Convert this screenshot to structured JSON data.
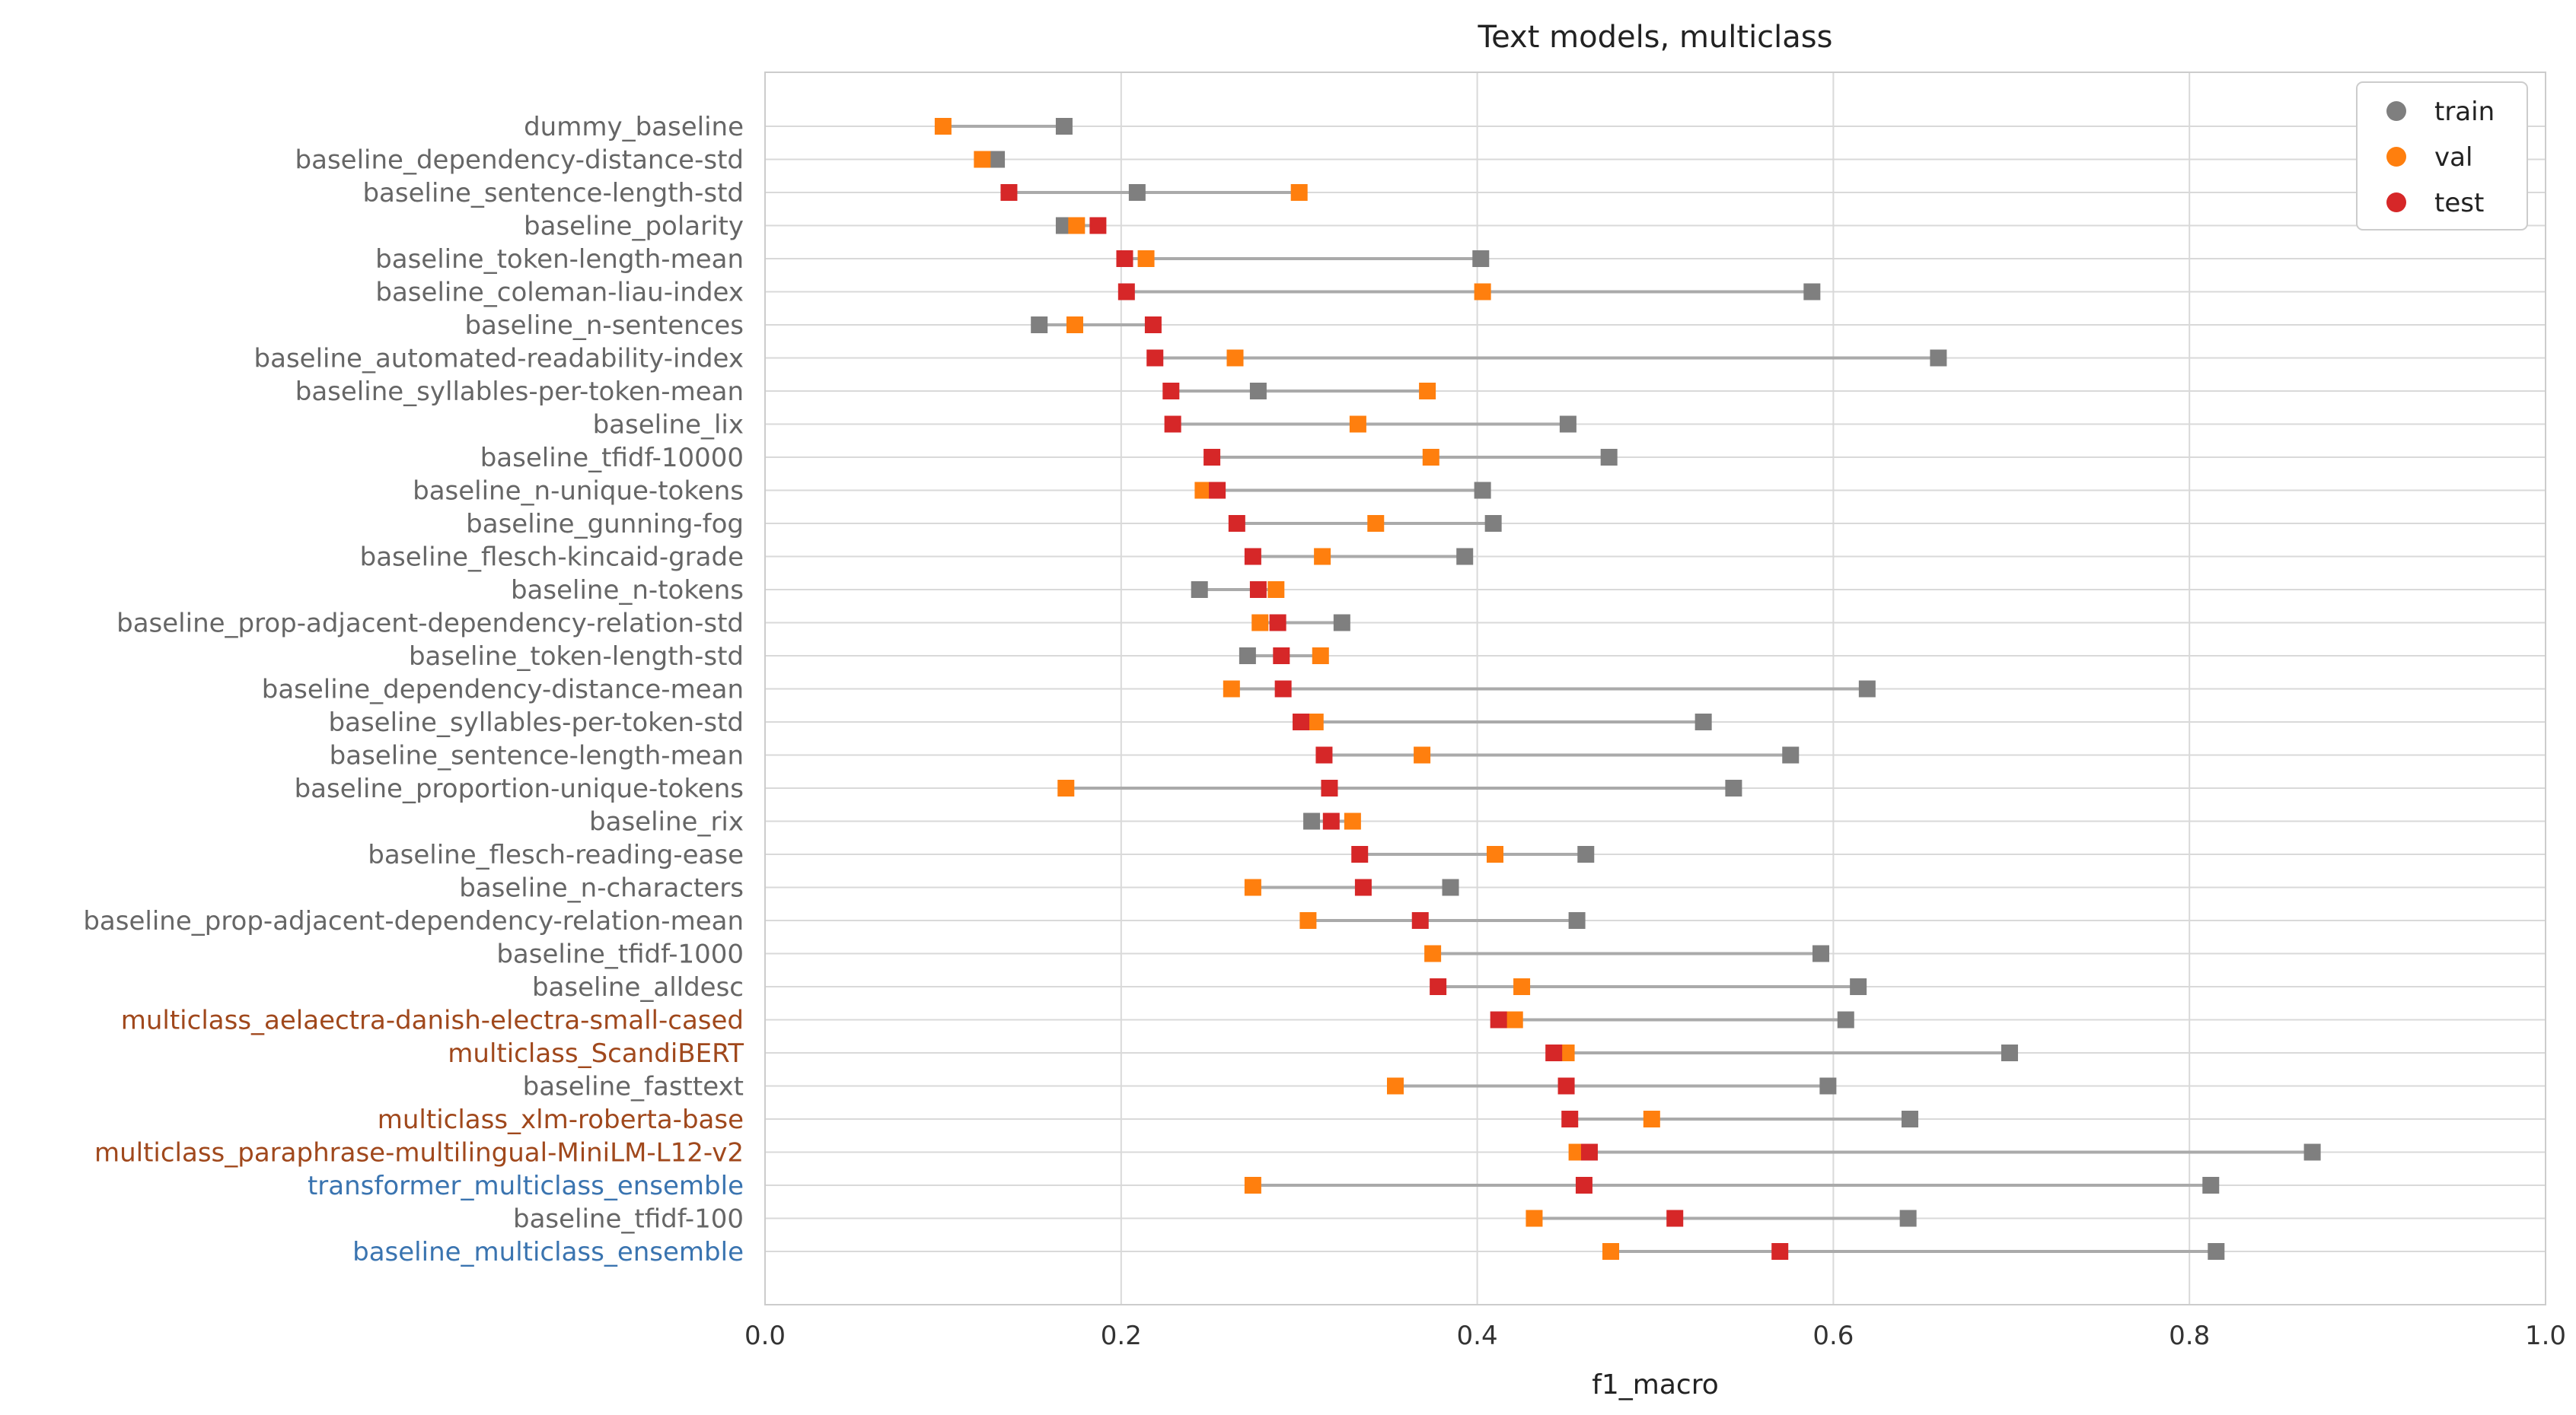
{
  "chart_data": {
    "type": "dumbbell",
    "title": "Text models, multiclass",
    "xlabel": "f1_macro",
    "ylabel": "",
    "xlim": [
      0.0,
      1.0
    ],
    "xticks": [
      "0.0",
      "0.2",
      "0.4",
      "0.6",
      "0.8",
      "1.0"
    ],
    "xtick_values": [
      0.0,
      0.2,
      0.4,
      0.6,
      0.8,
      1.0
    ],
    "grid": true,
    "legend_position": "top-right",
    "legend": [
      {
        "key": "train",
        "label": "train",
        "color": "#7f7f7f"
      },
      {
        "key": "val",
        "label": "val",
        "color": "#ff7f0e"
      },
      {
        "key": "test",
        "label": "test",
        "color": "#d62728"
      }
    ],
    "category_colors": {
      "baseline": "#666666",
      "transformer": "#a0481c",
      "ensemble": "#3a74b0"
    },
    "connector_color": "#aaaaaa",
    "rows": [
      {
        "label": "dummy_baseline",
        "group": "baseline",
        "train": 0.168,
        "val": 0.1,
        "test": null
      },
      {
        "label": "baseline_dependency-distance-std",
        "group": "baseline",
        "train": 0.13,
        "val": 0.122,
        "test": null
      },
      {
        "label": "baseline_sentence-length-std",
        "group": "baseline",
        "train": 0.209,
        "val": 0.3,
        "test": 0.137
      },
      {
        "label": "baseline_polarity",
        "group": "baseline",
        "train": 0.168,
        "val": 0.175,
        "test": 0.187
      },
      {
        "label": "baseline_token-length-mean",
        "group": "baseline",
        "train": 0.402,
        "val": 0.214,
        "test": 0.202
      },
      {
        "label": "baseline_coleman-liau-index",
        "group": "baseline",
        "train": 0.588,
        "val": 0.403,
        "test": 0.203
      },
      {
        "label": "baseline_n-sentences",
        "group": "baseline",
        "train": 0.154,
        "val": 0.174,
        "test": 0.218
      },
      {
        "label": "baseline_automated-readability-index",
        "group": "baseline",
        "train": 0.659,
        "val": 0.264,
        "test": 0.219
      },
      {
        "label": "baseline_syllables-per-token-mean",
        "group": "baseline",
        "train": 0.277,
        "val": 0.372,
        "test": 0.228
      },
      {
        "label": "baseline_lix",
        "group": "baseline",
        "train": 0.451,
        "val": 0.333,
        "test": 0.229
      },
      {
        "label": "baseline_tfidf-10000",
        "group": "baseline",
        "train": 0.474,
        "val": 0.374,
        "test": 0.251
      },
      {
        "label": "baseline_n-unique-tokens",
        "group": "baseline",
        "train": 0.403,
        "val": 0.246,
        "test": 0.254
      },
      {
        "label": "baseline_gunning-fog",
        "group": "baseline",
        "train": 0.409,
        "val": 0.343,
        "test": 0.265
      },
      {
        "label": "baseline_flesch-kincaid-grade",
        "group": "baseline",
        "train": 0.393,
        "val": 0.313,
        "test": 0.274
      },
      {
        "label": "baseline_n-tokens",
        "group": "baseline",
        "train": 0.244,
        "val": 0.287,
        "test": 0.277
      },
      {
        "label": "baseline_prop-adjacent-dependency-relation-std",
        "group": "baseline",
        "train": 0.324,
        "val": 0.278,
        "test": 0.288
      },
      {
        "label": "baseline_token-length-std",
        "group": "baseline",
        "train": 0.271,
        "val": 0.312,
        "test": 0.29
      },
      {
        "label": "baseline_dependency-distance-mean",
        "group": "baseline",
        "train": 0.619,
        "val": 0.262,
        "test": 0.291
      },
      {
        "label": "baseline_syllables-per-token-std",
        "group": "baseline",
        "train": 0.527,
        "val": 0.309,
        "test": 0.301
      },
      {
        "label": "baseline_sentence-length-mean",
        "group": "baseline",
        "train": 0.576,
        "val": 0.369,
        "test": 0.314
      },
      {
        "label": "baseline_proportion-unique-tokens",
        "group": "baseline",
        "train": 0.544,
        "val": 0.169,
        "test": 0.317
      },
      {
        "label": "baseline_rix",
        "group": "baseline",
        "train": 0.307,
        "val": 0.33,
        "test": 0.318
      },
      {
        "label": "baseline_flesch-reading-ease",
        "group": "baseline",
        "train": 0.461,
        "val": 0.41,
        "test": 0.334
      },
      {
        "label": "baseline_n-characters",
        "group": "baseline",
        "train": 0.385,
        "val": 0.274,
        "test": 0.336
      },
      {
        "label": "baseline_prop-adjacent-dependency-relation-mean",
        "group": "baseline",
        "train": 0.456,
        "val": 0.305,
        "test": 0.368
      },
      {
        "label": "baseline_tfidf-1000",
        "group": "baseline",
        "train": 0.593,
        "val": 0.375,
        "test": null
      },
      {
        "label": "baseline_alldesc",
        "group": "baseline",
        "train": 0.614,
        "val": 0.425,
        "test": 0.378
      },
      {
        "label": "multiclass_aelaectra-danish-electra-small-cased",
        "group": "transformer",
        "train": 0.607,
        "val": 0.421,
        "test": 0.412
      },
      {
        "label": "multiclass_ScandiBERT",
        "group": "transformer",
        "train": 0.699,
        "val": 0.45,
        "test": 0.443
      },
      {
        "label": "baseline_fasttext",
        "group": "baseline",
        "train": 0.597,
        "val": 0.354,
        "test": 0.45
      },
      {
        "label": "multiclass_xlm-roberta-base",
        "group": "transformer",
        "train": 0.643,
        "val": 0.498,
        "test": 0.452
      },
      {
        "label": "multiclass_paraphrase-multilingual-MiniLM-L12-v2",
        "group": "transformer",
        "train": 0.869,
        "val": 0.456,
        "test": 0.463
      },
      {
        "label": "transformer_multiclass_ensemble",
        "group": "ensemble",
        "train": 0.812,
        "val": 0.274,
        "test": 0.46
      },
      {
        "label": "baseline_tfidf-100",
        "group": "baseline",
        "train": 0.642,
        "val": 0.432,
        "test": 0.511
      },
      {
        "label": "baseline_multiclass_ensemble",
        "group": "ensemble",
        "train": 0.815,
        "val": 0.475,
        "test": 0.57
      }
    ]
  }
}
